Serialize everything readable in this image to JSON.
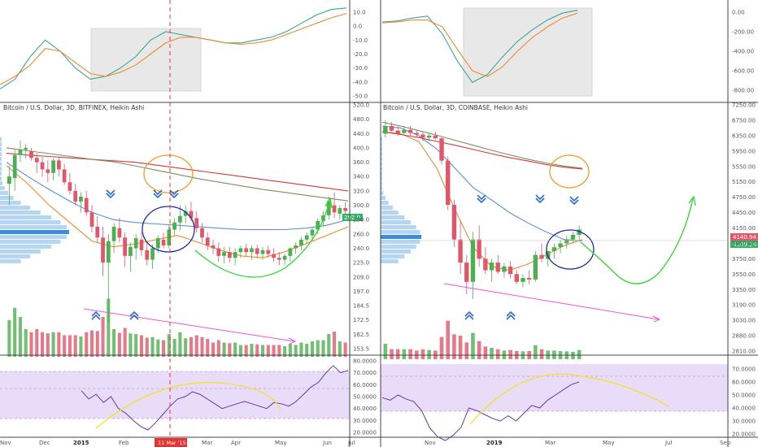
{
  "colors": {
    "up": "#4caf50",
    "down": "#e0566a",
    "ma_blue": "#5b8fd9",
    "ma_orange": "#f28a2c",
    "ma_red": "#d33a3a",
    "ma_olive": "#7a8f5a",
    "macd_teal": "#3aa49a",
    "rsi_line": "#6a35a8",
    "rsi_band": "#e5d7f6",
    "arrow_green": "#2ed82e",
    "arrow_pink": "#ef55e0",
    "arc_yellow": "#f3e22a",
    "circle_orange": "#f39c24",
    "circle_navy": "#1d2aa6",
    "chevron": "#2f6bd0",
    "vline": "#e53333"
  },
  "chart_data": [
    {
      "type": "candlestick",
      "title": "Bitcoin / U.S. Dollar, 3D, BITFINEX, Heikin Ashi",
      "x_ticks": [
        "Nov",
        "Dec",
        "2015",
        "Feb",
        "Mar",
        "Apr",
        "May",
        "Jun",
        "Jul"
      ],
      "y_ticks": [
        "153.5",
        "162.5",
        "172.5",
        "184.5",
        "197.0",
        "209.0",
        "225.0",
        "240.0",
        "260.0",
        "280.0",
        "300.0",
        "320.0",
        "340.0",
        "360.0",
        "400.0",
        "440.0",
        "480.0",
        "520.0"
      ],
      "price_tag": "292.0",
      "marker_label": "11 Mar '15",
      "candles": [
        [
          330,
          355,
          300,
          340
        ],
        [
          338,
          395,
          320,
          380
        ],
        [
          380,
          420,
          360,
          395
        ],
        [
          395,
          410,
          370,
          400
        ],
        [
          390,
          400,
          365,
          372
        ],
        [
          372,
          385,
          345,
          360
        ],
        [
          360,
          375,
          340,
          350
        ],
        [
          350,
          365,
          332,
          345
        ],
        [
          345,
          370,
          335,
          365
        ],
        [
          365,
          375,
          340,
          350
        ],
        [
          350,
          358,
          328,
          332
        ],
        [
          332,
          345,
          315,
          320
        ],
        [
          320,
          330,
          300,
          305
        ],
        [
          305,
          318,
          290,
          312
        ],
        [
          310,
          320,
          285,
          290
        ],
        [
          290,
          300,
          262,
          270
        ],
        [
          270,
          285,
          248,
          255
        ],
        [
          255,
          270,
          210,
          225
        ],
        [
          225,
          260,
          170,
          250
        ],
        [
          250,
          275,
          235,
          270
        ],
        [
          268,
          282,
          248,
          255
        ],
        [
          255,
          262,
          220,
          232
        ],
        [
          232,
          248,
          215,
          242
        ],
        [
          240,
          260,
          228,
          254
        ],
        [
          252,
          262,
          232,
          238
        ],
        [
          238,
          248,
          222,
          228
        ],
        [
          228,
          245,
          218,
          240
        ],
        [
          240,
          258,
          235,
          254
        ],
        [
          252,
          262,
          240,
          244
        ],
        [
          244,
          272,
          240,
          266
        ],
        [
          266,
          282,
          258,
          276
        ],
        [
          276,
          300,
          265,
          285
        ],
        [
          285,
          300,
          275,
          292
        ],
        [
          292,
          305,
          278,
          282
        ],
        [
          282,
          292,
          262,
          268
        ],
        [
          268,
          275,
          248,
          255
        ],
        [
          255,
          262,
          238,
          244
        ],
        [
          244,
          252,
          234,
          240
        ],
        [
          240,
          248,
          226,
          232
        ],
        [
          232,
          242,
          224,
          236
        ],
        [
          236,
          242,
          225,
          230
        ],
        [
          230,
          240,
          222,
          236
        ],
        [
          236,
          244,
          230,
          240
        ],
        [
          240,
          246,
          232,
          236
        ],
        [
          236,
          244,
          228,
          240
        ],
        [
          240,
          245,
          230,
          234
        ],
        [
          234,
          242,
          228,
          238
        ],
        [
          238,
          244,
          230,
          234
        ],
        [
          234,
          240,
          226,
          230
        ],
        [
          230,
          236,
          222,
          228
        ],
        [
          228,
          234,
          222,
          232
        ],
        [
          232,
          242,
          226,
          240
        ],
        [
          240,
          248,
          234,
          244
        ],
        [
          244,
          256,
          238,
          252
        ],
        [
          252,
          262,
          246,
          258
        ],
        [
          258,
          270,
          250,
          266
        ],
        [
          266,
          282,
          260,
          278
        ],
        [
          278,
          292,
          270,
          286
        ],
        [
          286,
          312,
          280,
          306
        ],
        [
          300,
          318,
          282,
          290
        ],
        [
          288,
          300,
          280,
          296
        ],
        [
          296,
          304,
          286,
          292
        ]
      ],
      "ma": {
        "blue": [
          360,
          340,
          322,
          305,
          290,
          280,
          276,
          274,
          272,
          270,
          268,
          266,
          266,
          266,
          268,
          272,
          280
        ],
        "orange": [
          355,
          330,
          300,
          275,
          250,
          242,
          246,
          252,
          258,
          248,
          238,
          232,
          230,
          236,
          246,
          258,
          270
        ],
        "red": [
          385,
          380,
          376,
          372,
          368,
          364,
          360,
          356,
          352,
          348,
          344,
          340,
          336,
          332,
          328,
          324,
          320
        ],
        "olive": [
          400,
          392,
          384,
          376,
          368,
          361,
          355,
          349,
          343,
          337,
          332,
          327,
          322,
          318,
          314,
          310,
          306
        ]
      },
      "macd": {
        "y_ticks": [
          "-50.0",
          "-40.0",
          "-30.0",
          "-20.0",
          "-10.0",
          "0.0",
          "10.0"
        ],
        "teal": [
          -45,
          -38,
          -22,
          -10,
          -18,
          -30,
          -38,
          -36,
          -30,
          -22,
          -10,
          -4,
          -6,
          -8,
          -10,
          -12,
          -12,
          -10,
          -8,
          -4,
          2,
          8,
          12,
          13
        ],
        "orange": [
          -42,
          -36,
          -28,
          -16,
          -18,
          -26,
          -34,
          -36,
          -33,
          -28,
          -20,
          -12,
          -8,
          -8,
          -10,
          -12,
          -13,
          -12,
          -10,
          -6,
          -2,
          2,
          6,
          9
        ]
      },
      "rsi": {
        "y_ticks": [
          "20.0000",
          "30.0000",
          "40.0000",
          "50.0000",
          "60.0000",
          "70.0000",
          "80.0000"
        ],
        "values": [
          55,
          48,
          52,
          45,
          50,
          40,
          36,
          30,
          25,
          22,
          28,
          35,
          42,
          48,
          50,
          54,
          52,
          48,
          44,
          40,
          42,
          44,
          46,
          44,
          42,
          40,
          45,
          44,
          42,
          46,
          52,
          58,
          62,
          70,
          76,
          70,
          72
        ]
      }
    },
    {
      "type": "candlestick",
      "title": "Bitcoin / U.S. Dollar, 3D, COINBASE, Heikin Ashi",
      "x_ticks": [
        "Nov",
        "2019",
        "Mar",
        "May",
        "Jul",
        "Sep"
      ],
      "y_ticks": [
        "2810.00",
        "2880.00",
        "3030.00",
        "3190.00",
        "3350.00",
        "3550.00",
        "3750.00",
        "3950.00",
        "4150.00",
        "4450.00",
        "4750.00",
        "5150.00",
        "5550.00",
        "5950.00",
        "6350.00",
        "6750.00",
        "7250.00"
      ],
      "price_tags": [
        "4140.94",
        "4109.24"
      ],
      "candles": [
        [
          6400,
          6750,
          6300,
          6600
        ],
        [
          6600,
          6700,
          6450,
          6480
        ],
        [
          6480,
          6600,
          6350,
          6400
        ],
        [
          6420,
          6600,
          6350,
          6500
        ],
        [
          6500,
          6600,
          6350,
          6420
        ],
        [
          6420,
          6500,
          6300,
          6380
        ],
        [
          6380,
          6450,
          6200,
          6300
        ],
        [
          6300,
          6420,
          6200,
          6350
        ],
        [
          6350,
          6450,
          6250,
          6280
        ],
        [
          6280,
          6300,
          5600,
          5700
        ],
        [
          5700,
          5800,
          4500,
          4600
        ],
        [
          4600,
          4700,
          3900,
          4000
        ],
        [
          4000,
          4300,
          3550,
          3700
        ],
        [
          3700,
          3800,
          3300,
          3450
        ],
        [
          3450,
          4100,
          3250,
          4000
        ],
        [
          4000,
          4200,
          3650,
          3750
        ],
        [
          3750,
          3900,
          3550,
          3600
        ],
        [
          3600,
          3750,
          3450,
          3700
        ],
        [
          3700,
          3800,
          3550,
          3580
        ],
        [
          3580,
          3700,
          3500,
          3650
        ],
        [
          3650,
          3720,
          3500,
          3550
        ],
        [
          3550,
          3600,
          3420,
          3450
        ],
        [
          3450,
          3550,
          3380,
          3500
        ],
        [
          3500,
          3600,
          3420,
          3480
        ],
        [
          3480,
          3850,
          3450,
          3800
        ],
        [
          3800,
          3950,
          3700,
          3750
        ],
        [
          3750,
          3850,
          3650,
          3850
        ],
        [
          3850,
          3950,
          3750,
          3900
        ],
        [
          3900,
          4000,
          3820,
          3950
        ],
        [
          3950,
          4050,
          3880,
          4000
        ],
        [
          4000,
          4100,
          3950,
          4060
        ],
        [
          4060,
          4200,
          3980,
          4130
        ]
      ],
      "ma": {
        "blue": [
          6600,
          6550,
          6350,
          6000,
          5500,
          5000,
          4700,
          4450,
          4250,
          4100,
          4000,
          3980
        ],
        "orange": [
          6450,
          6400,
          6200,
          5500,
          4500,
          3900,
          3650,
          3600,
          3680,
          3800,
          3920,
          4000
        ],
        "red": [
          6450,
          6380,
          6300,
          6200,
          6100,
          5990,
          5880,
          5780,
          5690,
          5600,
          5530,
          5480
        ],
        "olive": [
          6700,
          6600,
          6480,
          6360,
          6230,
          6100,
          5970,
          5850,
          5740,
          5640,
          5560,
          5500
        ]
      },
      "macd": {
        "y_ticks": [
          "-800.00",
          "-600.00",
          "-400.00",
          "-200.00",
          "0.00"
        ],
        "teal": [
          -100,
          -90,
          -60,
          -40,
          -220,
          -500,
          -720,
          -640,
          -460,
          -300,
          -180,
          -80,
          -10,
          20
        ],
        "orange": [
          -110,
          -100,
          -80,
          -80,
          -150,
          -380,
          -600,
          -660,
          -560,
          -400,
          -260,
          -150,
          -60,
          -10
        ]
      },
      "rsi": {
        "y_ticks": [
          "20.0000",
          "30.0000",
          "40.0000",
          "50.0000",
          "60.0000",
          "70.0000"
        ],
        "values": [
          48,
          46,
          50,
          47,
          45,
          38,
          25,
          18,
          15,
          19,
          25,
          40,
          38,
          35,
          32,
          30,
          34,
          30,
          36,
          42,
          40,
          46,
          50,
          54,
          58,
          60
        ]
      }
    }
  ]
}
